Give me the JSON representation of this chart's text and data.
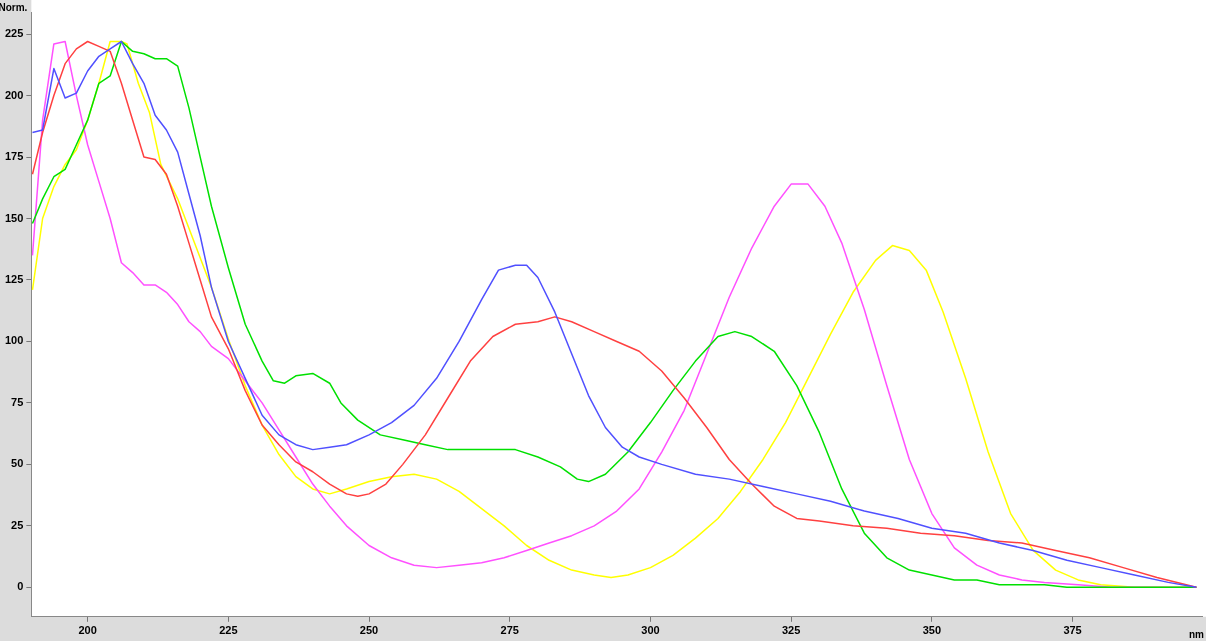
{
  "chart_data": {
    "type": "line",
    "ylabel": "Norm.",
    "xlabel": "nm",
    "xlim": [
      190,
      398
    ],
    "xticks": [
      200,
      225,
      250,
      275,
      300,
      325,
      350,
      375
    ],
    "ylim": [
      -12,
      234
    ],
    "yticks": [
      0,
      25,
      50,
      75,
      100,
      125,
      150,
      175,
      200,
      225
    ],
    "grid": false,
    "legend": false,
    "marker": "none",
    "line_style": "solid",
    "series": [
      {
        "color": "#5050ff",
        "x": [
          190.2,
          192,
          194,
          196,
          198,
          200,
          202,
          204,
          206,
          208,
          210,
          212,
          214,
          216,
          218,
          220,
          222,
          225,
          228,
          231,
          234,
          237,
          240,
          243,
          246,
          250,
          254,
          258,
          262,
          266,
          270,
          273,
          276,
          278,
          280,
          283,
          286,
          289,
          292,
          295,
          298,
          302,
          308,
          314,
          320,
          326,
          332,
          338,
          344,
          350,
          356,
          362,
          368,
          374,
          380,
          386,
          392,
          397
        ],
        "values": [
          185,
          186,
          211,
          199,
          201,
          210,
          216,
          219,
          222,
          213,
          205,
          192,
          186,
          177,
          160,
          143,
          122,
          100,
          85,
          70,
          62,
          58,
          56,
          57,
          58,
          62,
          67,
          74,
          85,
          100,
          117,
          129,
          131,
          131,
          126,
          112,
          95,
          78,
          65,
          57,
          53,
          50,
          46,
          44,
          41,
          38,
          35,
          31,
          28,
          24,
          22,
          18,
          15,
          11,
          8,
          5,
          2,
          0
        ]
      },
      {
        "color": "#ff4040",
        "x": [
          190.2,
          192,
          194,
          196,
          198,
          200,
          202,
          204,
          206,
          208,
          210,
          212,
          214,
          216,
          218,
          220,
          222,
          225,
          228,
          231,
          234,
          237,
          240,
          243,
          246,
          248,
          250,
          253,
          256,
          260,
          264,
          268,
          272,
          276,
          280,
          283,
          286,
          290,
          294,
          298,
          302,
          306,
          310,
          314,
          318,
          322,
          326,
          330,
          336,
          342,
          348,
          354,
          360,
          366,
          372,
          378,
          384,
          390,
          397
        ],
        "values": [
          168,
          185,
          200,
          213,
          219,
          222,
          220,
          218,
          205,
          190,
          175,
          174,
          168,
          155,
          140,
          125,
          110,
          97,
          80,
          66,
          58,
          51,
          47,
          42,
          38,
          37,
          38,
          42,
          50,
          62,
          77,
          92,
          102,
          107,
          108,
          110,
          108,
          104,
          100,
          96,
          88,
          77,
          65,
          52,
          42,
          33,
          28,
          27,
          25,
          24,
          22,
          21,
          19,
          18,
          15,
          12,
          8,
          4,
          0
        ]
      },
      {
        "color": "#00e000",
        "x": [
          190.2,
          192,
          194,
          196,
          198,
          200,
          202,
          204,
          206,
          208,
          210,
          212,
          214,
          216,
          218,
          220,
          222,
          225,
          228,
          231,
          233,
          235,
          237,
          240,
          243,
          245,
          248,
          252,
          256,
          260,
          264,
          268,
          272,
          276,
          280,
          284,
          287,
          289,
          292,
          296,
          300,
          304,
          308,
          312,
          315,
          318,
          322,
          326,
          330,
          334,
          338,
          342,
          346,
          350,
          354,
          358,
          362,
          366,
          370,
          374,
          380,
          386,
          392,
          397
        ],
        "values": [
          148,
          158,
          167,
          170,
          180,
          190,
          205,
          208,
          222,
          218,
          217,
          215,
          215,
          212,
          195,
          175,
          155,
          130,
          107,
          92,
          84,
          83,
          86,
          87,
          83,
          75,
          68,
          62,
          60,
          58,
          56,
          56,
          56,
          56,
          53,
          49,
          44,
          43,
          46,
          55,
          67,
          80,
          92,
          102,
          104,
          102,
          96,
          82,
          63,
          40,
          22,
          12,
          7,
          5,
          3,
          3,
          1,
          1,
          1,
          0,
          0,
          0,
          0,
          0
        ]
      },
      {
        "color": "#ff50ff",
        "x": [
          190.2,
          192,
          194,
          196,
          198,
          200,
          202,
          204,
          206,
          208,
          210,
          212,
          214,
          216,
          218,
          220,
          222,
          225,
          228,
          231,
          234,
          237,
          240,
          243,
          246,
          250,
          254,
          258,
          262,
          266,
          270,
          274,
          278,
          282,
          286,
          290,
          294,
          298,
          302,
          306,
          310,
          314,
          318,
          322,
          325,
          328,
          331,
          334,
          338,
          342,
          346,
          350,
          354,
          358,
          362,
          366,
          370,
          376,
          382,
          388,
          397
        ],
        "values": [
          135,
          190,
          221,
          222,
          200,
          180,
          165,
          150,
          132,
          128,
          123,
          123,
          120,
          115,
          108,
          104,
          98,
          93,
          84,
          75,
          64,
          53,
          42,
          33,
          25,
          17,
          12,
          9,
          8,
          9,
          10,
          12,
          15,
          18,
          21,
          25,
          31,
          40,
          55,
          72,
          95,
          118,
          138,
          155,
          164,
          164,
          155,
          140,
          113,
          82,
          52,
          30,
          16,
          9,
          5,
          3,
          2,
          1,
          0,
          0,
          0
        ]
      },
      {
        "color": "#ffff00",
        "x": [
          190.2,
          192,
          194,
          196,
          198,
          200,
          202,
          204,
          206,
          207,
          209,
          211,
          213,
          216,
          219,
          222,
          225,
          228,
          231,
          234,
          237,
          240,
          243,
          246,
          250,
          254,
          258,
          262,
          266,
          270,
          274,
          278,
          282,
          286,
          290,
          293,
          296,
          300,
          304,
          308,
          312,
          316,
          320,
          324,
          328,
          332,
          336,
          340,
          343,
          346,
          349,
          352,
          356,
          360,
          364,
          368,
          372,
          376,
          380,
          386,
          397
        ],
        "values": [
          121,
          150,
          163,
          172,
          178,
          190,
          205,
          222,
          222,
          221,
          205,
          193,
          172,
          158,
          140,
          122,
          101,
          82,
          66,
          54,
          45,
          40,
          38,
          40,
          43,
          45,
          46,
          44,
          39,
          32,
          25,
          17,
          11,
          7,
          5,
          4,
          5,
          8,
          13,
          20,
          28,
          39,
          52,
          67,
          85,
          103,
          120,
          133,
          139,
          137,
          129,
          112,
          85,
          55,
          30,
          15,
          7,
          3,
          1,
          0,
          0
        ]
      }
    ]
  }
}
